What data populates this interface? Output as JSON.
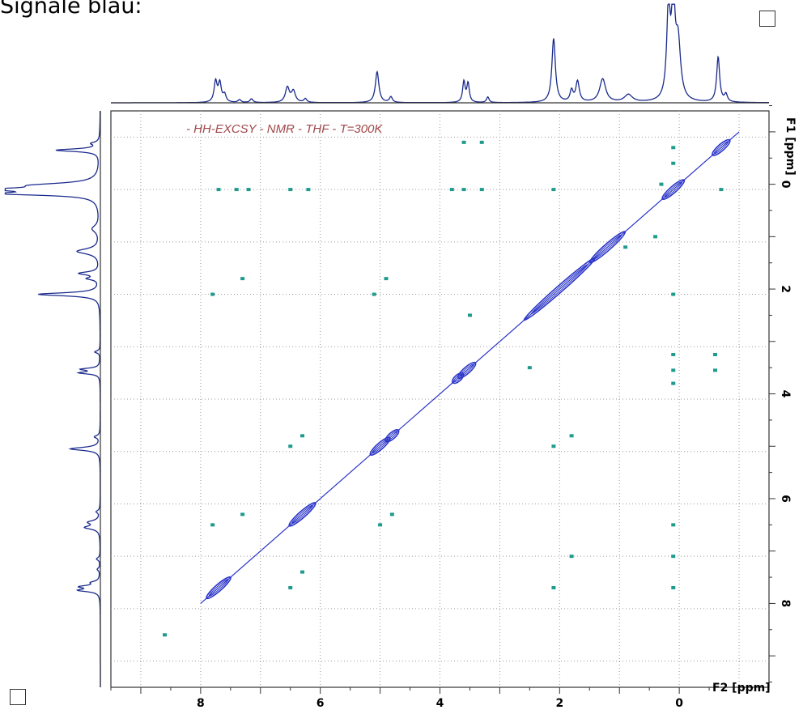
{
  "heading": "Signale blau:",
  "chart_data": {
    "type": "heatmap",
    "title": "- HH-EXCSY - NMR - THF - T=300K",
    "xlabel": "F2 [ppm]",
    "ylabel": "F1 [ppm]",
    "xlim": [
      9.5,
      -1.5
    ],
    "ylim": [
      -1.4,
      9.6
    ],
    "x_ticks": [
      "8",
      "6",
      "4",
      "2",
      "0"
    ],
    "y_ticks": [
      "0",
      "2",
      "4",
      "6",
      "8"
    ],
    "grid": true,
    "colors": {
      "positive": "#2b35c8",
      "negative": "#1f9b8e",
      "projection": "#1a2a8c",
      "title": "#a0484a"
    },
    "diagonal_peaks": [
      {
        "shift": 7.7,
        "w": 0.45
      },
      {
        "shift": 6.3,
        "w": 0.5
      },
      {
        "shift": 5.0,
        "w": 0.35
      },
      {
        "shift": 4.8,
        "w": 0.2
      },
      {
        "shift": 3.55,
        "w": 0.3
      },
      {
        "shift": 3.7,
        "w": 0.15
      },
      {
        "shift": 2.0,
        "w": 1.5
      },
      {
        "shift": 1.2,
        "w": 0.7
      },
      {
        "shift": 0.1,
        "w": 0.4
      },
      {
        "shift": -0.7,
        "w": 0.3
      }
    ],
    "cross_peaks": [
      {
        "x": 7.7,
        "y": 0.1
      },
      {
        "x": 7.4,
        "y": 0.1
      },
      {
        "x": 7.2,
        "y": 0.1
      },
      {
        "x": 6.5,
        "y": 0.1
      },
      {
        "x": 6.2,
        "y": 0.1
      },
      {
        "x": 3.8,
        "y": 0.1
      },
      {
        "x": 3.6,
        "y": 0.1
      },
      {
        "x": 3.3,
        "y": 0.1
      },
      {
        "x": 2.1,
        "y": 0.1
      },
      {
        "x": -0.7,
        "y": 0.1
      },
      {
        "x": 3.6,
        "y": -0.8
      },
      {
        "x": 3.3,
        "y": -0.8
      },
      {
        "x": 7.8,
        "y": 2.1
      },
      {
        "x": 7.3,
        "y": 1.8
      },
      {
        "x": 5.1,
        "y": 2.1
      },
      {
        "x": 4.9,
        "y": 1.8
      },
      {
        "x": 0.1,
        "y": 2.1
      },
      {
        "x": 0.1,
        "y": 3.25
      },
      {
        "x": -0.6,
        "y": 3.25
      },
      {
        "x": 0.1,
        "y": 3.55
      },
      {
        "x": -0.6,
        "y": 3.55
      },
      {
        "x": 0.1,
        "y": 3.8
      },
      {
        "x": 3.5,
        "y": 2.5
      },
      {
        "x": 2.5,
        "y": 3.5
      },
      {
        "x": 6.3,
        "y": 4.8
      },
      {
        "x": 6.5,
        "y": 5.0
      },
      {
        "x": 2.1,
        "y": 5.0
      },
      {
        "x": 1.8,
        "y": 4.8
      },
      {
        "x": 0.1,
        "y": 6.5
      },
      {
        "x": 7.8,
        "y": 6.5
      },
      {
        "x": 7.3,
        "y": 6.3
      },
      {
        "x": 5.0,
        "y": 6.5
      },
      {
        "x": 4.8,
        "y": 6.3
      },
      {
        "x": 0.1,
        "y": 7.1
      },
      {
        "x": 0.1,
        "y": 7.7
      },
      {
        "x": 6.5,
        "y": 7.7
      },
      {
        "x": 6.3,
        "y": 7.4
      },
      {
        "x": 2.1,
        "y": 7.7
      },
      {
        "x": 1.8,
        "y": 7.1
      },
      {
        "x": 8.6,
        "y": 8.6
      },
      {
        "x": 0.1,
        "y": -0.7
      },
      {
        "x": 0.1,
        "y": -0.4
      },
      {
        "x": 0.3,
        "y": 0.0
      },
      {
        "x": 0.4,
        "y": 1.0
      },
      {
        "x": 0.9,
        "y": 1.2
      }
    ],
    "projection_peaks": [
      {
        "shift": 7.75,
        "h": 0.22,
        "w": 0.03
      },
      {
        "shift": 7.68,
        "h": 0.2,
        "w": 0.03
      },
      {
        "shift": 7.6,
        "h": 0.08,
        "w": 0.03
      },
      {
        "shift": 7.35,
        "h": 0.03,
        "w": 0.03
      },
      {
        "shift": 7.15,
        "h": 0.04,
        "w": 0.03
      },
      {
        "shift": 6.55,
        "h": 0.16,
        "w": 0.04
      },
      {
        "shift": 6.45,
        "h": 0.12,
        "w": 0.04
      },
      {
        "shift": 6.25,
        "h": 0.04,
        "w": 0.03
      },
      {
        "shift": 5.05,
        "h": 0.33,
        "w": 0.035
      },
      {
        "shift": 4.82,
        "h": 0.06,
        "w": 0.03
      },
      {
        "shift": 3.6,
        "h": 0.22,
        "w": 0.025
      },
      {
        "shift": 3.53,
        "h": 0.2,
        "w": 0.025
      },
      {
        "shift": 3.2,
        "h": 0.06,
        "w": 0.025
      },
      {
        "shift": 2.1,
        "h": 0.68,
        "w": 0.035
      },
      {
        "shift": 1.8,
        "h": 0.12,
        "w": 0.03
      },
      {
        "shift": 1.7,
        "h": 0.22,
        "w": 0.035
      },
      {
        "shift": 1.28,
        "h": 0.25,
        "w": 0.06
      },
      {
        "shift": 0.85,
        "h": 0.08,
        "w": 0.08
      },
      {
        "shift": 0.18,
        "h": 0.95,
        "w": 0.035
      },
      {
        "shift": 0.1,
        "h": 1.0,
        "w": 0.035
      },
      {
        "shift": 0.02,
        "h": 0.6,
        "w": 0.05
      },
      {
        "shift": -0.65,
        "h": 0.48,
        "w": 0.03
      },
      {
        "shift": -0.78,
        "h": 0.08,
        "w": 0.03
      }
    ]
  }
}
